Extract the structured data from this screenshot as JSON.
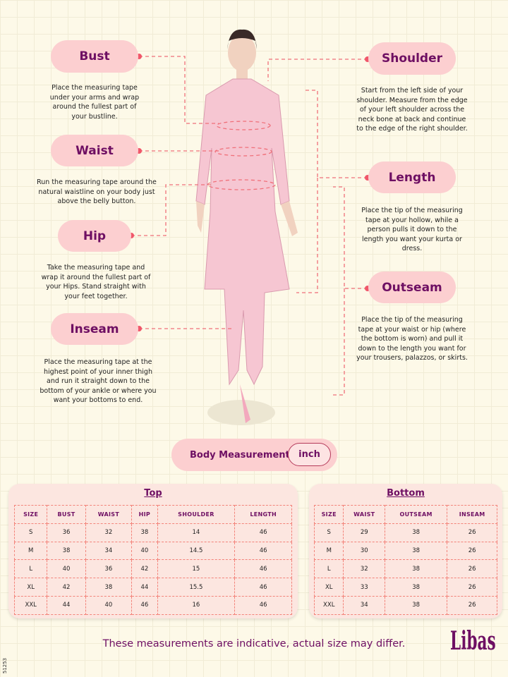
{
  "measures": {
    "bust": {
      "label": "Bust",
      "desc": "Place the measuring tape under your arms and wrap around the fullest part of your bustline."
    },
    "waist": {
      "label": "Waist",
      "desc": "Run the measuring tape around the natural waistline on your body just above the belly button."
    },
    "hip": {
      "label": "Hip",
      "desc": "Take the measuring tape and wrap it around the fullest part of your Hips. Stand straight with your feet together."
    },
    "inseam": {
      "label": "Inseam",
      "desc": "Place the measuring tape at the highest point of your inner thigh and run it straight down to the bottom of your ankle or where you want your bottoms to end."
    },
    "shoulder": {
      "label": "Shoulder",
      "desc": "Start from the left side of your shoulder. Measure from the edge of your left shoulder across the neck bone at back and continue to the edge of the right shoulder."
    },
    "length": {
      "label": "Length",
      "desc": "Place the tip of the measuring tape at your hollow, while a person pulls it down to the length you want your kurta or dress."
    },
    "outseam": {
      "label": "Outseam",
      "desc": "Place the tip of the measuring tape at your waist or hip (where the bottom is worn) and pull it down to the length you want for your trousers, palazzos, or skirts."
    }
  },
  "unit_toggle": {
    "label": "Body Measurement",
    "unit": "inch"
  },
  "top_table": {
    "title": "Top",
    "headers": [
      "SIZE",
      "BUST",
      "WAIST",
      "HIP",
      "SHOULDER",
      "LENGTH"
    ],
    "rows": [
      [
        "S",
        "36",
        "32",
        "38",
        "14",
        "46"
      ],
      [
        "M",
        "38",
        "34",
        "40",
        "14.5",
        "46"
      ],
      [
        "L",
        "40",
        "36",
        "42",
        "15",
        "46"
      ],
      [
        "XL",
        "42",
        "38",
        "44",
        "15.5",
        "46"
      ],
      [
        "XXL",
        "44",
        "40",
        "46",
        "16",
        "46"
      ]
    ]
  },
  "bottom_table": {
    "title": "Bottom",
    "headers": [
      "SIZE",
      "WAIST",
      "OUTSEAM",
      "INSEAM"
    ],
    "rows": [
      [
        "S",
        "29",
        "38",
        "26"
      ],
      [
        "M",
        "30",
        "38",
        "26"
      ],
      [
        "L",
        "32",
        "38",
        "26"
      ],
      [
        "XL",
        "33",
        "38",
        "26"
      ],
      [
        "XXL",
        "34",
        "38",
        "26"
      ]
    ]
  },
  "footer": "These measurements are indicative, actual size may differ.",
  "logo": "Libas",
  "code": "51253",
  "colors": {
    "accent": "#6e0f63",
    "pill": "#fccfd0",
    "dash": "#f3837a"
  }
}
